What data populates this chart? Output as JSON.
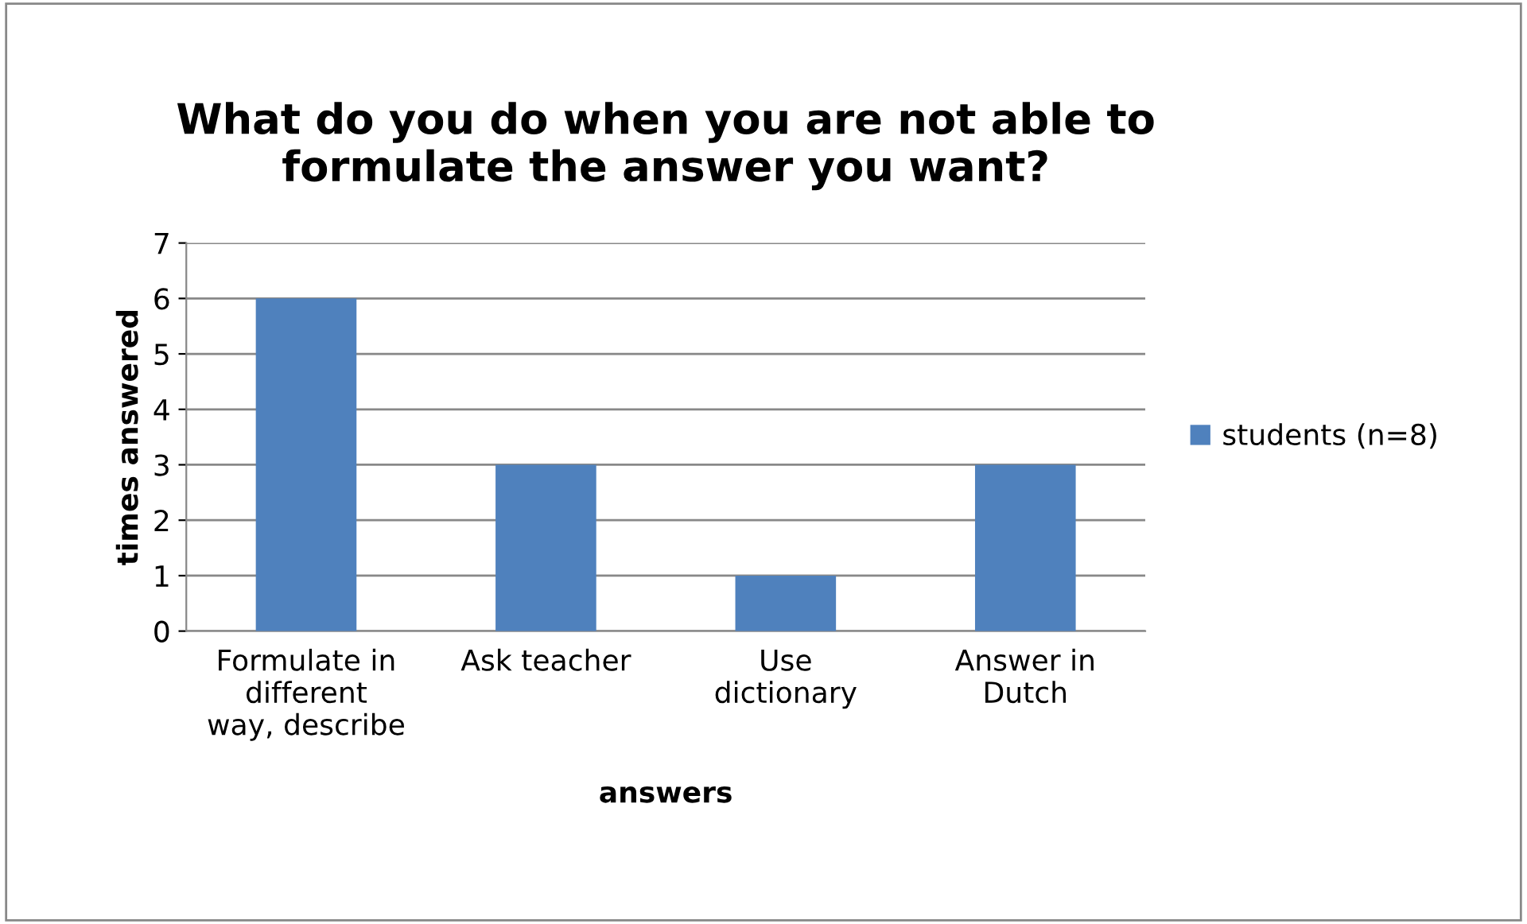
{
  "chart_data": {
    "type": "bar",
    "title": "What do you do when you are not able to\nformulate the answer you want?",
    "xlabel": "answers",
    "ylabel": "times answered",
    "categories": [
      "Formulate in\ndifferent\nway, describe",
      "Ask teacher",
      "Use\ndictionary",
      "Answer in\nDutch"
    ],
    "series": [
      {
        "name": "students (n=8)",
        "color": "#4f81bd",
        "values": [
          6,
          3,
          1,
          3
        ]
      }
    ],
    "ylim": [
      0,
      7
    ],
    "yticks": [
      0,
      1,
      2,
      3,
      4,
      5,
      6,
      7
    ],
    "grid": "y",
    "legend": "right"
  }
}
